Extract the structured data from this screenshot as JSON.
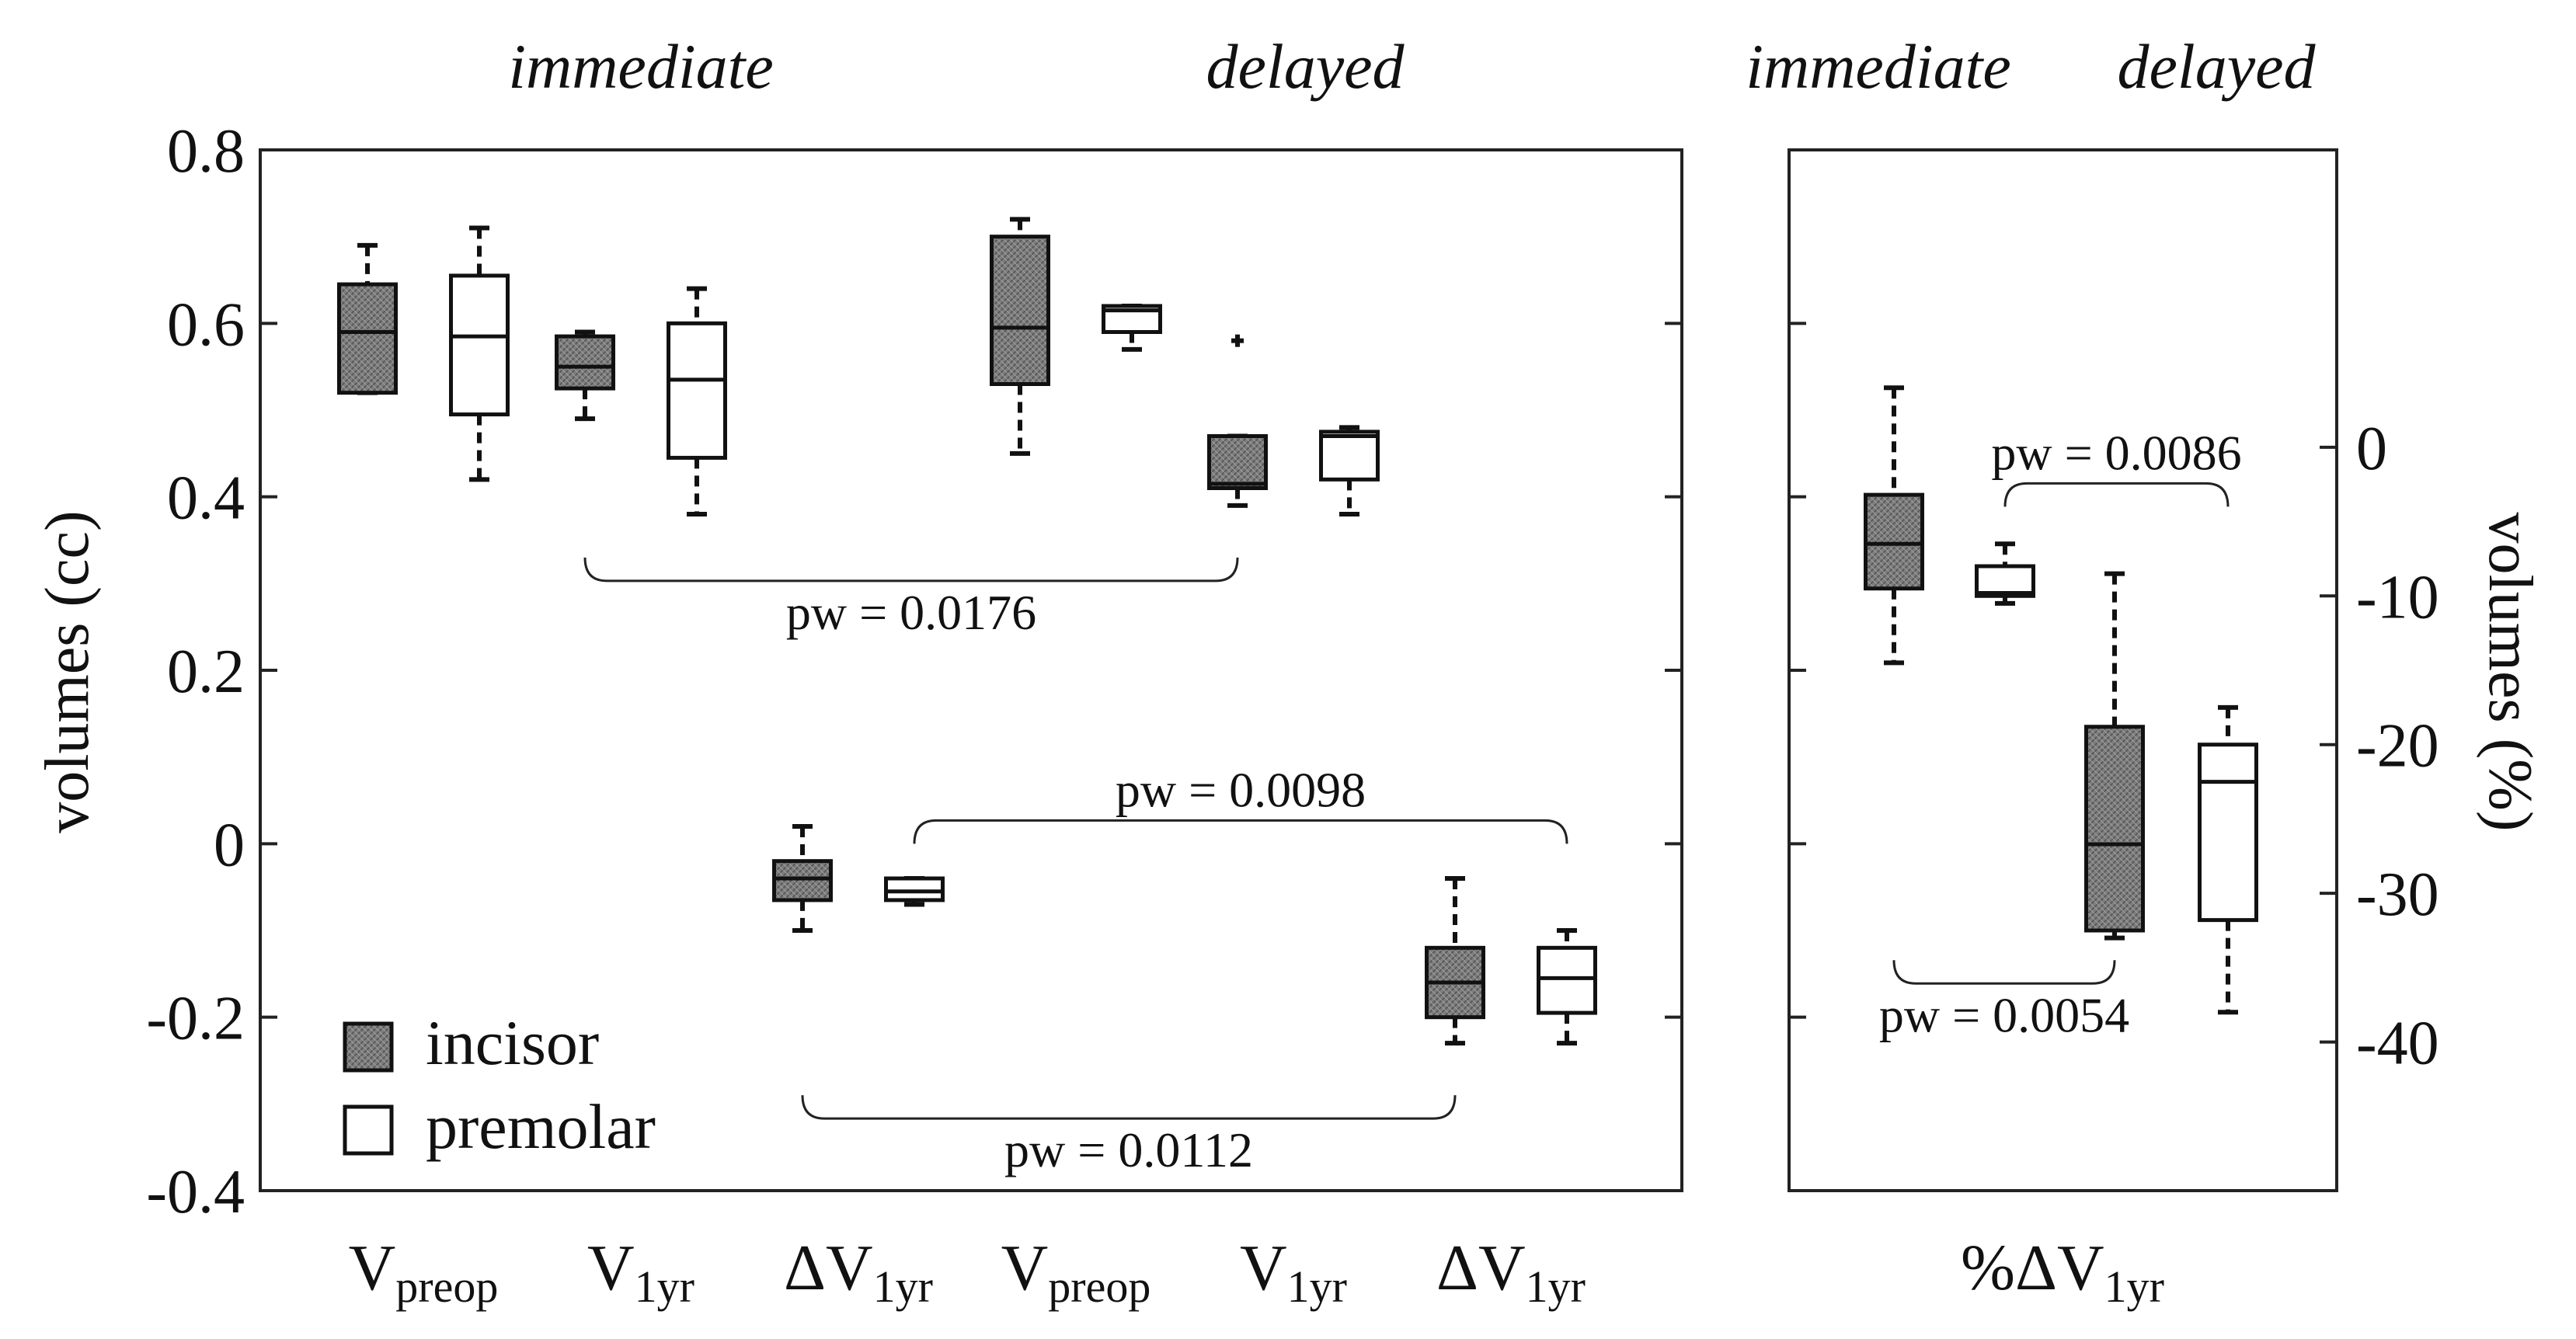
{
  "chart_data": {
    "type": "box",
    "left_panel": {
      "ylabel": "volumes (cc)",
      "ylim": [
        -0.4,
        0.8
      ],
      "yticks": [
        "0.8",
        "0.6",
        "0.4",
        "0.2",
        "0",
        "-0.2",
        "-0.4"
      ],
      "ytick_values": [
        0.8,
        0.6,
        0.4,
        0.2,
        0,
        -0.2,
        -0.4
      ],
      "group_headers": [
        "immediate",
        "delayed"
      ],
      "categories": [
        {
          "base": "V",
          "sub": "preop"
        },
        {
          "base": "V",
          "sub": "1yr"
        },
        {
          "base": "ΔV",
          "sub": "1yr"
        },
        {
          "base": "V",
          "sub": "preop"
        },
        {
          "base": "V",
          "sub": "1yr"
        },
        {
          "base": "ΔV",
          "sub": "1yr"
        }
      ],
      "boxes": [
        {
          "category": 0,
          "group": "incisor",
          "whislo": 0.52,
          "q1": 0.52,
          "med": 0.59,
          "q3": 0.645,
          "whishi": 0.69,
          "fliers": []
        },
        {
          "category": 0,
          "group": "premolar",
          "whislo": 0.42,
          "q1": 0.495,
          "med": 0.585,
          "q3": 0.655,
          "whishi": 0.71,
          "fliers": []
        },
        {
          "category": 1,
          "group": "incisor",
          "whislo": 0.49,
          "q1": 0.525,
          "med": 0.55,
          "q3": 0.585,
          "whishi": 0.59,
          "fliers": []
        },
        {
          "category": 1,
          "group": "premolar",
          "whislo": 0.38,
          "q1": 0.445,
          "med": 0.535,
          "q3": 0.6,
          "whishi": 0.64,
          "fliers": []
        },
        {
          "category": 2,
          "group": "incisor",
          "whislo": -0.1,
          "q1": -0.065,
          "med": -0.04,
          "q3": -0.02,
          "whishi": 0.02,
          "fliers": []
        },
        {
          "category": 2,
          "group": "premolar",
          "whislo": -0.07,
          "q1": -0.065,
          "med": -0.055,
          "q3": -0.04,
          "whishi": -0.04,
          "fliers": []
        },
        {
          "category": 3,
          "group": "incisor",
          "whislo": 0.45,
          "q1": 0.53,
          "med": 0.595,
          "q3": 0.7,
          "whishi": 0.72,
          "fliers": []
        },
        {
          "category": 3,
          "group": "premolar",
          "whislo": 0.57,
          "q1": 0.59,
          "med": 0.615,
          "q3": 0.62,
          "whishi": 0.62,
          "fliers": []
        },
        {
          "category": 4,
          "group": "incisor",
          "whislo": 0.39,
          "q1": 0.41,
          "med": 0.415,
          "q3": 0.47,
          "whishi": 0.47,
          "fliers": [
            0.58
          ]
        },
        {
          "category": 4,
          "group": "premolar",
          "whislo": 0.38,
          "q1": 0.42,
          "med": 0.47,
          "q3": 0.475,
          "whishi": 0.48,
          "fliers": []
        },
        {
          "category": 5,
          "group": "incisor",
          "whislo": -0.23,
          "q1": -0.2,
          "med": -0.16,
          "q3": -0.12,
          "whishi": -0.04,
          "fliers": []
        },
        {
          "category": 5,
          "group": "premolar",
          "whislo": -0.23,
          "q1": -0.195,
          "med": -0.155,
          "q3": -0.12,
          "whishi": -0.1,
          "fliers": []
        }
      ],
      "annotations": [
        {
          "text": "pw = 0.0176",
          "from": [
            1,
            "incisor"
          ],
          "to": [
            4,
            "incisor"
          ],
          "y": 0.33,
          "direction": "down"
        },
        {
          "text": "pw = 0.0098",
          "from": [
            2,
            "premolar"
          ],
          "to": [
            5,
            "premolar"
          ],
          "y": 0.0,
          "direction": "up"
        },
        {
          "text": "pw = 0.0112",
          "from": [
            2,
            "incisor"
          ],
          "to": [
            5,
            "incisor"
          ],
          "y": -0.29,
          "direction": "down"
        }
      ]
    },
    "right_panel": {
      "ylabel": "volumes (%)",
      "ylim": [
        -50,
        20
      ],
      "yticks": [
        "0",
        "-10",
        "-20",
        "-30",
        "-40"
      ],
      "ytick_values": [
        0,
        -10,
        -20,
        -30,
        -40
      ],
      "group_headers": [
        "immediate",
        "delayed"
      ],
      "category": {
        "base": "%ΔV",
        "sub": "1yr"
      },
      "boxes": [
        {
          "timing": "immediate",
          "group": "incisor",
          "whislo": -14.5,
          "q1": -9.5,
          "med": -6.5,
          "q3": -3.2,
          "whishi": 4.0,
          "fliers": []
        },
        {
          "timing": "immediate",
          "group": "premolar",
          "whislo": -10.5,
          "q1": -10.0,
          "med": -9.8,
          "q3": -8.0,
          "whishi": -6.5,
          "fliers": []
        },
        {
          "timing": "delayed",
          "group": "incisor",
          "whislo": -33.0,
          "q1": -32.5,
          "med": -26.7,
          "q3": -18.8,
          "whishi": -8.5,
          "fliers": []
        },
        {
          "timing": "delayed",
          "group": "premolar",
          "whislo": -38.0,
          "q1": -31.8,
          "med": -22.5,
          "q3": -20.0,
          "whishi": -17.5,
          "fliers": []
        }
      ],
      "annotations": [
        {
          "text": "pw = 0.0086",
          "from": [
            "immediate",
            "premolar"
          ],
          "to": [
            "delayed",
            "premolar"
          ],
          "y": -4.0,
          "direction": "up"
        },
        {
          "text": "pw = 0.0054",
          "from": [
            "immediate",
            "incisor"
          ],
          "to": [
            "delayed",
            "incisor"
          ],
          "y": -34.5,
          "direction": "down"
        }
      ]
    },
    "legend": {
      "placement": "bottom-left",
      "items": [
        {
          "label": "incisor",
          "fill": "#7a7a7a"
        },
        {
          "label": "premolar",
          "fill": "#ffffff"
        }
      ]
    }
  }
}
